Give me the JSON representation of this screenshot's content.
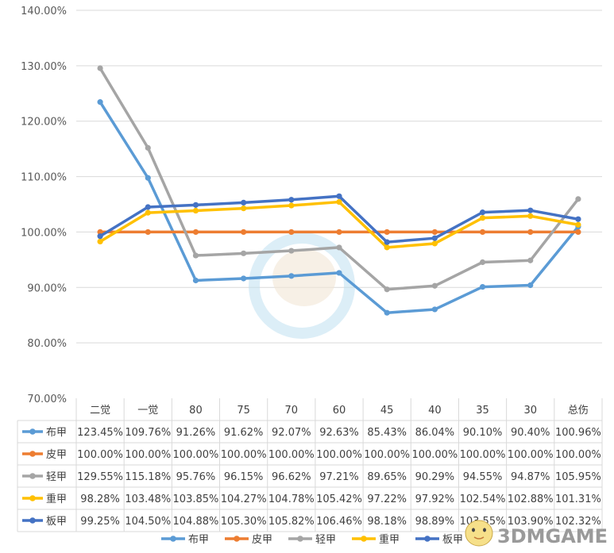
{
  "chart_data": {
    "type": "line",
    "categories": [
      "二觉",
      "一觉",
      "80",
      "75",
      "70",
      "60",
      "45",
      "40",
      "35",
      "30",
      "总伤"
    ],
    "y_ticks": [
      "140.00%",
      "130.00%",
      "120.00%",
      "110.00%",
      "100.00%",
      "90.00%",
      "80.00%",
      "70.00%"
    ],
    "ylim": [
      70,
      140
    ],
    "grid": true,
    "legend_position": "bottom",
    "data_table": true,
    "series": [
      {
        "name": "布甲",
        "color": "#5B9BD5",
        "values": [
          123.45,
          109.76,
          91.26,
          91.62,
          92.07,
          92.63,
          85.43,
          86.04,
          90.1,
          90.4,
          100.96
        ],
        "labels": [
          "123.45%",
          "109.76%",
          "91.26%",
          "91.62%",
          "92.07%",
          "92.63%",
          "85.43%",
          "86.04%",
          "90.10%",
          "90.40%",
          "100.96%"
        ]
      },
      {
        "name": "皮甲",
        "color": "#ED7D31",
        "values": [
          100,
          100,
          100,
          100,
          100,
          100,
          100,
          100,
          100,
          100,
          100
        ],
        "labels": [
          "100.00%",
          "100.00%",
          "100.00%",
          "100.00%",
          "100.00%",
          "100.00%",
          "100.00%",
          "100.00%",
          "100.00%",
          "100.00%",
          "100.00%"
        ]
      },
      {
        "name": "轻甲",
        "color": "#A5A5A5",
        "values": [
          129.55,
          115.18,
          95.76,
          96.15,
          96.62,
          97.21,
          89.65,
          90.29,
          94.55,
          94.87,
          105.95
        ],
        "labels": [
          "129.55%",
          "115.18%",
          "95.76%",
          "96.15%",
          "96.62%",
          "97.21%",
          "89.65%",
          "90.29%",
          "94.55%",
          "94.87%",
          "105.95%"
        ]
      },
      {
        "name": "重甲",
        "color": "#FFC000",
        "values": [
          98.28,
          103.48,
          103.85,
          104.27,
          104.78,
          105.42,
          97.22,
          97.92,
          102.54,
          102.88,
          101.31
        ],
        "labels": [
          "98.28%",
          "103.48%",
          "103.85%",
          "104.27%",
          "104.78%",
          "105.42%",
          "97.22%",
          "97.92%",
          "102.54%",
          "102.88%",
          "101.31%"
        ]
      },
      {
        "name": "板甲",
        "color": "#4472C4",
        "values": [
          99.25,
          104.5,
          104.88,
          105.3,
          105.82,
          106.46,
          98.18,
          98.89,
          103.55,
          103.9,
          102.32
        ],
        "labels": [
          "99.25%",
          "104.50%",
          "104.88%",
          "105.30%",
          "105.82%",
          "106.46%",
          "98.18%",
          "98.89%",
          "103.55%",
          "103.90%",
          "102.32%"
        ]
      }
    ]
  },
  "watermark": {
    "brand_text": "3DMGAME",
    "brand_color": "#9a9a9a",
    "stamp_color": "#bfe0f0"
  }
}
